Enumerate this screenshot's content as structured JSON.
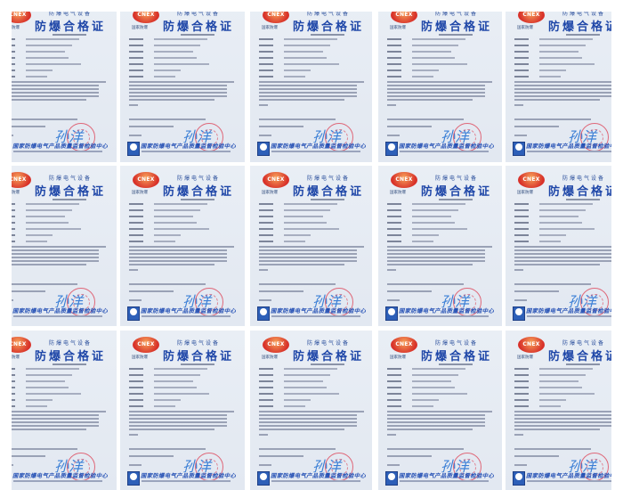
{
  "certificate": {
    "logo_text": "CNEX",
    "logo_caption": "国家防爆",
    "subtitle": "防爆电气设备",
    "title": "防爆合格证",
    "agency": "国家防爆电气产品质量监督检验中心",
    "signature": "孙洋"
  },
  "grid": {
    "columns": 5,
    "rows": 3
  },
  "colors": {
    "title_blue": "#1f47a8",
    "stamp_red": "#de3c50",
    "logo_red": "#d8322a",
    "paper": "#e6ecf3"
  }
}
